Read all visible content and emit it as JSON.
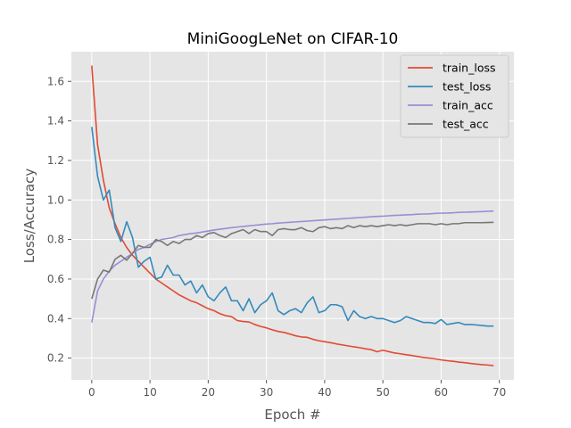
{
  "chart_data": {
    "type": "line",
    "title": "MiniGoogLeNet on CIFAR-10",
    "xlabel": "Epoch #",
    "ylabel": "Loss/Accuracy",
    "xlim": [
      -3.5,
      72.5
    ],
    "ylim": [
      0.09,
      1.75
    ],
    "xticks": [
      0,
      10,
      20,
      30,
      40,
      50,
      60,
      70
    ],
    "yticks": [
      0.2,
      0.4,
      0.6,
      0.8,
      1.0,
      1.2,
      1.4,
      1.6
    ],
    "ytick_labels": [
      "0.2",
      "0.4",
      "0.6",
      "0.8",
      "1.0",
      "1.2",
      "1.4",
      "1.6"
    ],
    "grid": true,
    "legend_position": "top-right",
    "colors": {
      "background": "#E5E5E5",
      "grid": "#FFFFFF"
    },
    "series": [
      {
        "name": "train_loss",
        "color": "#E24A33",
        "values": [
          1.68,
          1.28,
          1.1,
          0.96,
          0.88,
          0.81,
          0.76,
          0.72,
          0.69,
          0.66,
          0.63,
          0.6,
          0.58,
          0.56,
          0.54,
          0.52,
          0.505,
          0.49,
          0.48,
          0.465,
          0.45,
          0.44,
          0.425,
          0.415,
          0.41,
          0.39,
          0.385,
          0.383,
          0.37,
          0.36,
          0.353,
          0.343,
          0.335,
          0.33,
          0.322,
          0.313,
          0.307,
          0.305,
          0.295,
          0.288,
          0.283,
          0.278,
          0.272,
          0.267,
          0.262,
          0.257,
          0.253,
          0.247,
          0.243,
          0.232,
          0.24,
          0.233,
          0.226,
          0.222,
          0.217,
          0.213,
          0.208,
          0.203,
          0.2,
          0.196,
          0.191,
          0.187,
          0.184,
          0.18,
          0.177,
          0.173,
          0.17,
          0.167,
          0.165,
          0.162
        ]
      },
      {
        "name": "test_loss",
        "color": "#348ABD",
        "values": [
          1.37,
          1.12,
          1.0,
          1.05,
          0.86,
          0.79,
          0.89,
          0.81,
          0.66,
          0.69,
          0.71,
          0.6,
          0.61,
          0.67,
          0.62,
          0.62,
          0.57,
          0.59,
          0.53,
          0.57,
          0.51,
          0.49,
          0.53,
          0.56,
          0.49,
          0.49,
          0.44,
          0.5,
          0.43,
          0.47,
          0.49,
          0.53,
          0.44,
          0.42,
          0.44,
          0.45,
          0.43,
          0.48,
          0.51,
          0.43,
          0.44,
          0.47,
          0.47,
          0.46,
          0.39,
          0.44,
          0.41,
          0.4,
          0.41,
          0.4,
          0.4,
          0.39,
          0.38,
          0.39,
          0.41,
          0.4,
          0.39,
          0.38,
          0.38,
          0.375,
          0.395,
          0.37,
          0.375,
          0.38,
          0.37,
          0.37,
          0.368,
          0.365,
          0.362,
          0.362
        ]
      },
      {
        "name": "train_acc",
        "color": "#988ED5",
        "values": [
          0.38,
          0.54,
          0.6,
          0.64,
          0.67,
          0.69,
          0.71,
          0.73,
          0.75,
          0.76,
          0.775,
          0.79,
          0.8,
          0.805,
          0.81,
          0.82,
          0.825,
          0.83,
          0.833,
          0.838,
          0.843,
          0.848,
          0.852,
          0.856,
          0.86,
          0.863,
          0.866,
          0.869,
          0.872,
          0.875,
          0.878,
          0.88,
          0.883,
          0.885,
          0.887,
          0.889,
          0.891,
          0.893,
          0.895,
          0.897,
          0.899,
          0.901,
          0.903,
          0.905,
          0.907,
          0.909,
          0.911,
          0.913,
          0.915,
          0.917,
          0.918,
          0.92,
          0.922,
          0.923,
          0.925,
          0.926,
          0.928,
          0.929,
          0.93,
          0.932,
          0.933,
          0.934,
          0.935,
          0.937,
          0.938,
          0.939,
          0.94,
          0.941,
          0.943,
          0.944
        ]
      },
      {
        "name": "test_acc",
        "color": "#777777",
        "values": [
          0.5,
          0.6,
          0.645,
          0.635,
          0.7,
          0.72,
          0.695,
          0.73,
          0.77,
          0.76,
          0.76,
          0.8,
          0.79,
          0.77,
          0.79,
          0.78,
          0.8,
          0.8,
          0.82,
          0.81,
          0.83,
          0.835,
          0.82,
          0.81,
          0.83,
          0.84,
          0.85,
          0.83,
          0.85,
          0.84,
          0.84,
          0.82,
          0.85,
          0.855,
          0.85,
          0.85,
          0.86,
          0.845,
          0.84,
          0.86,
          0.865,
          0.855,
          0.86,
          0.855,
          0.87,
          0.86,
          0.87,
          0.865,
          0.87,
          0.865,
          0.87,
          0.875,
          0.87,
          0.875,
          0.87,
          0.875,
          0.88,
          0.88,
          0.88,
          0.875,
          0.88,
          0.875,
          0.88,
          0.88,
          0.885,
          0.885,
          0.885,
          0.885,
          0.886,
          0.887
        ]
      }
    ]
  }
}
